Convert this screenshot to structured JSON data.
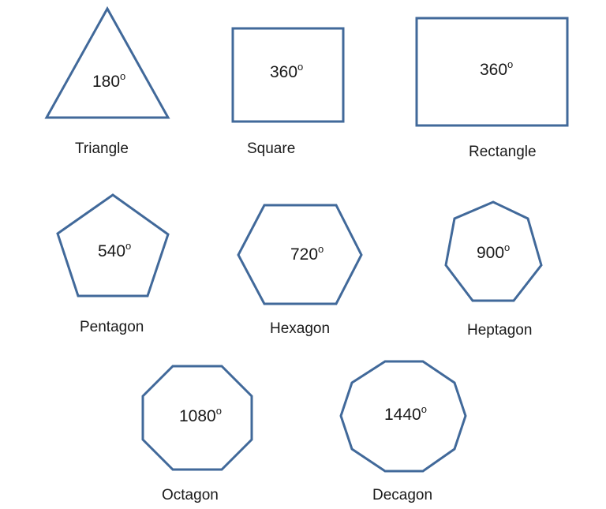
{
  "colors": {
    "outline": "#41699a",
    "text": "#1a1a1a"
  },
  "degree_symbol": "o",
  "shapes": [
    {
      "id": "triangle",
      "name": "Triangle",
      "angle_sum": "180",
      "sides": 3
    },
    {
      "id": "square",
      "name": "Square",
      "angle_sum": "360",
      "sides": 4
    },
    {
      "id": "rectangle",
      "name": "Rectangle",
      "angle_sum": "360",
      "sides": 4
    },
    {
      "id": "pentagon",
      "name": "Pentagon",
      "angle_sum": "540",
      "sides": 5
    },
    {
      "id": "hexagon",
      "name": "Hexagon",
      "angle_sum": "720",
      "sides": 6
    },
    {
      "id": "heptagon",
      "name": "Heptagon",
      "angle_sum": "900",
      "sides": 7
    },
    {
      "id": "octagon",
      "name": "Octagon",
      "angle_sum": "1080",
      "sides": 8
    },
    {
      "id": "decagon",
      "name": "Decagon",
      "angle_sum": "1440",
      "sides": 10
    }
  ]
}
